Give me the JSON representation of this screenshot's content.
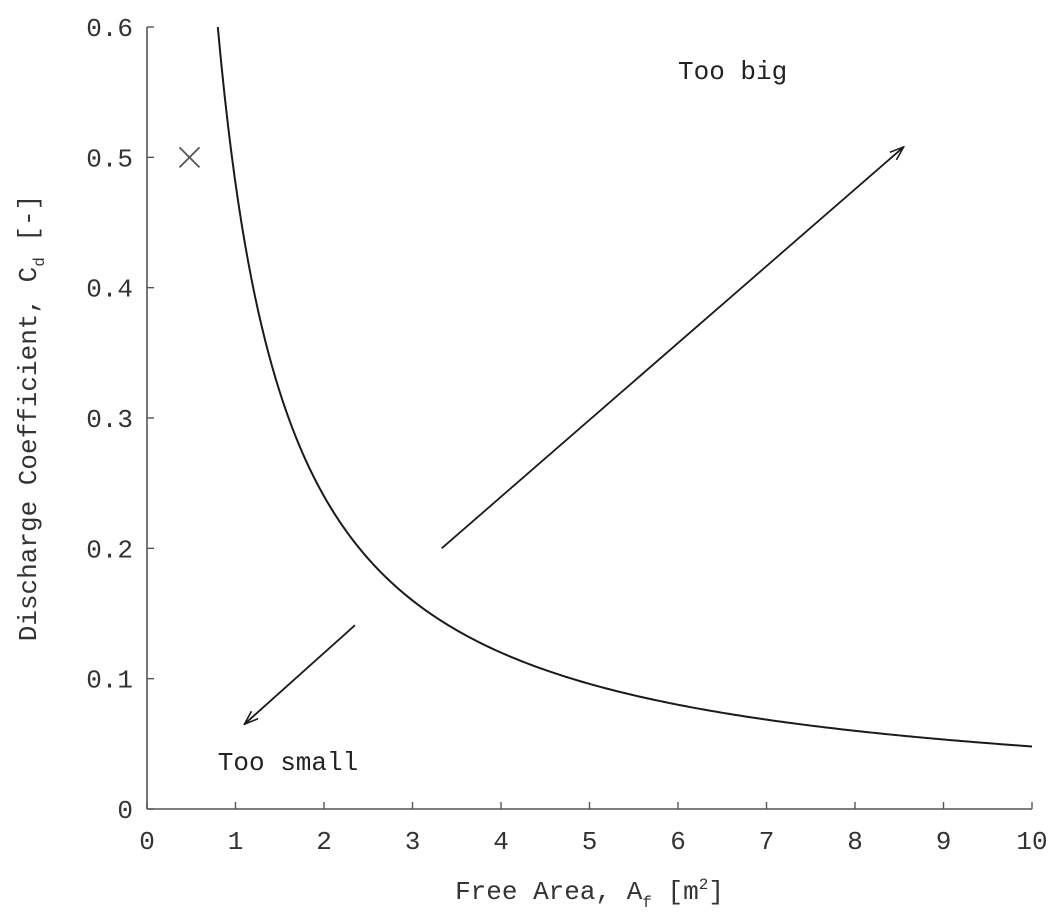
{
  "chart_data": {
    "type": "line",
    "xlabel": {
      "prefix": "Free Area, A",
      "sub": "f",
      "middle": " [m",
      "sup": "2",
      "suffix": "]"
    },
    "ylabel": {
      "prefix": "Discharge Coefficient, C",
      "sub": "d",
      "suffix": " [-]"
    },
    "xlim": [
      0,
      10
    ],
    "ylim": [
      0,
      0.6
    ],
    "x_ticks": [
      "0",
      "1",
      "2",
      "3",
      "4",
      "5",
      "6",
      "7",
      "8",
      "9",
      "10"
    ],
    "y_ticks": [
      "0",
      "0.1",
      "0.2",
      "0.3",
      "0.4",
      "0.5",
      "0.6"
    ],
    "grid": false,
    "series": [
      {
        "x": [
          0.8,
          0.9,
          1.0,
          1.2,
          1.5,
          2.0,
          2.5,
          3.0,
          3.5,
          4.0,
          4.5,
          5.0,
          6.0,
          7.0,
          8.0,
          9.0,
          10.0
        ],
        "y": [
          0.6,
          0.533,
          0.48,
          0.4,
          0.32,
          0.24,
          0.192,
          0.16,
          0.137,
          0.12,
          0.107,
          0.096,
          0.08,
          0.069,
          0.06,
          0.053,
          0.048
        ],
        "color": "#1a1a1a"
      }
    ],
    "markers": [
      {
        "x": 0.48,
        "y": 0.5,
        "symbol": "×",
        "color": "#555555"
      }
    ],
    "annotations": [
      {
        "text": "Too big",
        "x": 6.0,
        "y": 0.56,
        "x1": 3.33,
        "y1": 0.2,
        "x2": 8.55,
        "y2": 0.508
      },
      {
        "text": "Too small",
        "x": 0.8,
        "y": 0.03,
        "x1": 2.35,
        "y1": 0.141,
        "x2": 1.1,
        "y2": 0.065
      }
    ]
  }
}
